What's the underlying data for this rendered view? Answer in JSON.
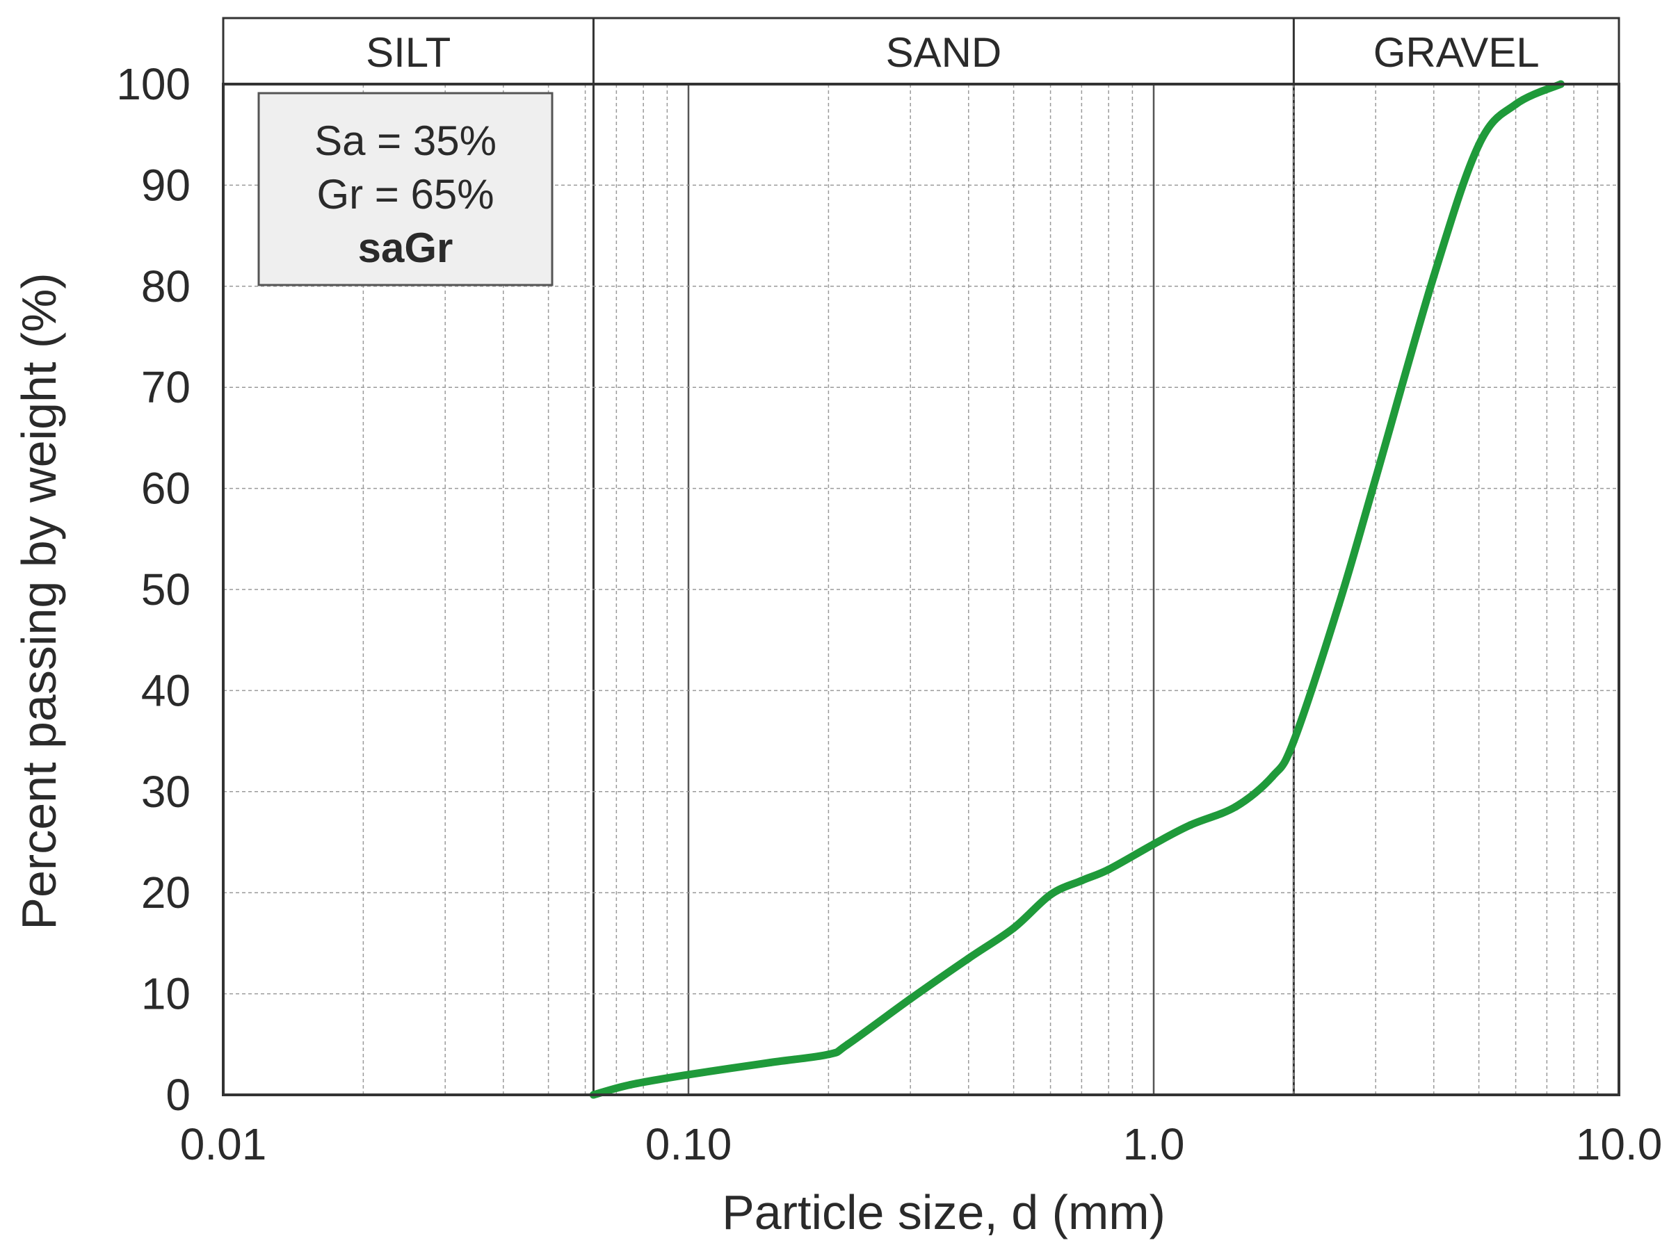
{
  "chart_data": {
    "type": "line",
    "title": "",
    "xlabel": "Particle size, d (mm)",
    "ylabel": "Percent passing by weight (%)",
    "x_scale": "log",
    "xlim": [
      0.01,
      10.0
    ],
    "ylim": [
      0,
      100
    ],
    "x_ticks": [
      0.01,
      0.1,
      1.0,
      10.0
    ],
    "x_tick_labels": [
      "0.01",
      "0.10",
      "1.0",
      "10.0"
    ],
    "y_ticks": [
      0,
      10,
      20,
      30,
      40,
      50,
      60,
      70,
      80,
      90,
      100
    ],
    "y_tick_labels": [
      "0",
      "10",
      "20",
      "30",
      "40",
      "50",
      "60",
      "70",
      "80",
      "90",
      "100"
    ],
    "grid": true,
    "zones": [
      {
        "label": "SILT",
        "from": 0.01,
        "to": 0.0625
      },
      {
        "label": "SAND",
        "from": 0.0625,
        "to": 2.0
      },
      {
        "label": "GRAVEL",
        "from": 2.0,
        "to": 10.0
      }
    ],
    "annotation": {
      "lines": [
        "Sa = 35%",
        "Gr = 65%"
      ],
      "bold_line": "saGr",
      "position": "top-left"
    },
    "series": [
      {
        "color": "#1f9a3a",
        "x": [
          0.0625,
          0.075,
          0.1,
          0.15,
          0.2,
          0.22,
          0.3,
          0.4,
          0.5,
          0.6,
          0.7,
          0.8,
          1.0,
          1.2,
          1.5,
          1.8,
          2.0,
          2.5,
          3.0,
          4.0,
          5.0,
          6.0,
          7.5
        ],
        "y": [
          0,
          1,
          2,
          3.2,
          4,
          5,
          9.5,
          13.5,
          16.5,
          19.8,
          21.2,
          22.3,
          24.8,
          26.7,
          28.5,
          31.5,
          35,
          48.5,
          61,
          81,
          94,
          98,
          100
        ]
      }
    ]
  }
}
